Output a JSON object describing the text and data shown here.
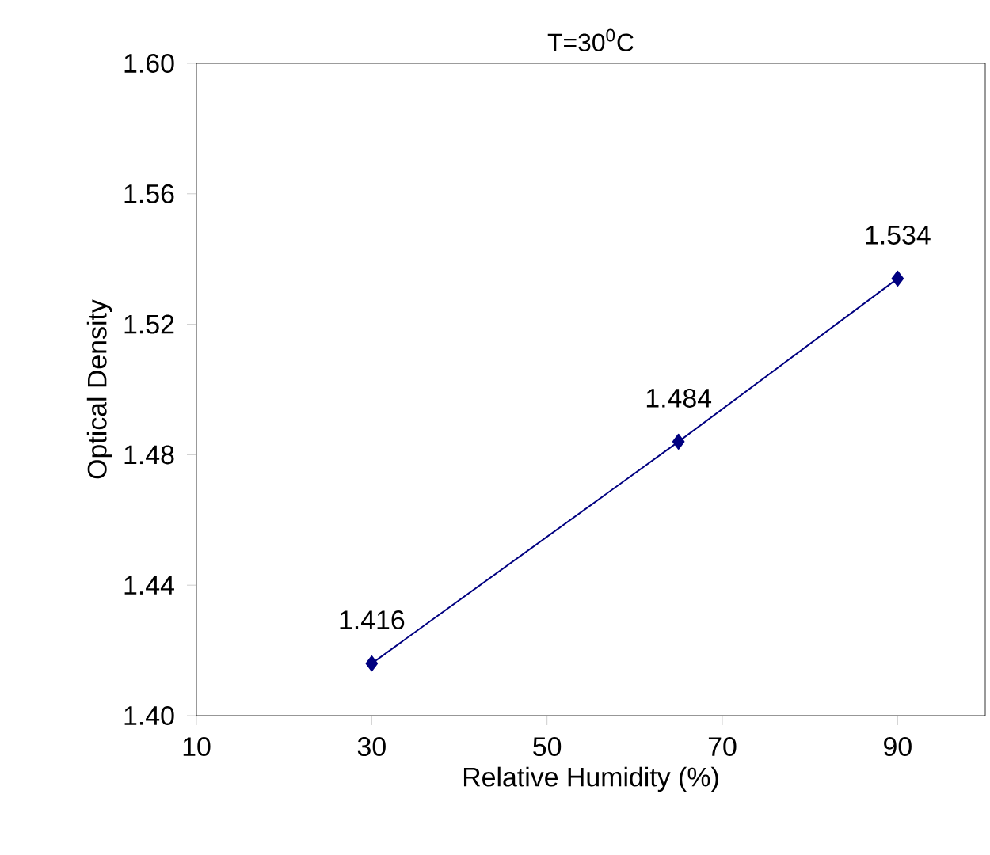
{
  "chart_data": {
    "type": "line",
    "title": "T=30$^{0}$C",
    "xlabel": "Relative Humidity (%)",
    "ylabel": "Optical Density",
    "x": [
      30,
      65,
      90
    ],
    "series": [
      {
        "color": "#000080",
        "values": [
          1.416,
          1.484,
          1.534
        ]
      }
    ],
    "data_labels": true,
    "marker": "diamond",
    "line_style": "solid",
    "grid": false,
    "xlim": [
      10,
      100
    ],
    "xticks": [
      10,
      30,
      50,
      70,
      90
    ],
    "ylim": [
      1.4,
      1.6
    ],
    "yticks": [
      {
        "value": 1.4,
        "label": "1.40"
      },
      1.44,
      1.48,
      1.52,
      1.56,
      {
        "value": 1.6,
        "label": "1.60"
      }
    ]
  }
}
